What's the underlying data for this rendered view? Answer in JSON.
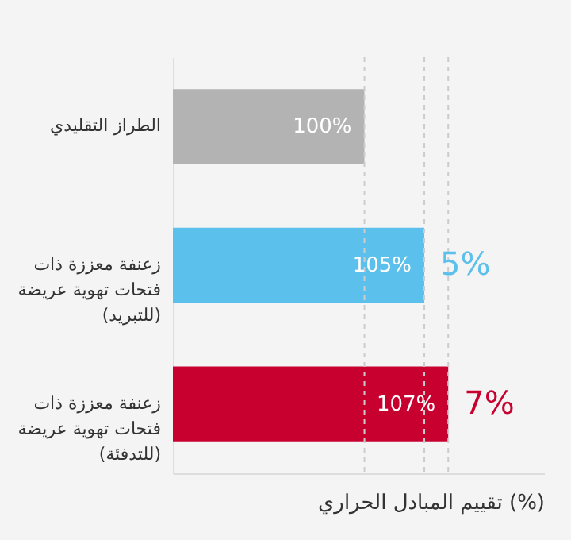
{
  "chart_data": {
    "type": "bar",
    "orientation": "horizontal",
    "categories": [
      "الطراز التقليدي",
      "زعنفة معززة ذات فتحات تهوية عريضة (للتبريد)",
      "زعنفة معززة ذات فتحات تهوية عريضة (للتدفئة)"
    ],
    "values": [
      100,
      105,
      107
    ],
    "colors": [
      "#b3b3b3",
      "#5bc0eb",
      "#c8002f"
    ],
    "value_labels": [
      "100%",
      "105%",
      "107%"
    ],
    "xlim": [
      84,
      115
    ],
    "xlabel": "تقييم المبادل الحراري (%)",
    "annotations": [
      {
        "text": "5%",
        "x": 105,
        "y": "زعنفة معززة ذات فتحات تهوية عريضة (للتبريد)"
      },
      {
        "text": "7%",
        "x": 107,
        "y": "زعنفة معززة ذات فتحات تهوية عريضة (للتدفئة)"
      }
    ],
    "ref_lines": [
      {
        "axis": "x",
        "value": 100,
        "line_style": "dashed",
        "color": "#cccccc"
      },
      {
        "axis": "x",
        "value": 105,
        "line_style": "dashed",
        "color": "#cccccc"
      },
      {
        "axis": "x",
        "value": 107,
        "line_style": "dashed",
        "color": "#cccccc"
      }
    ],
    "tick_labels": "y"
  }
}
